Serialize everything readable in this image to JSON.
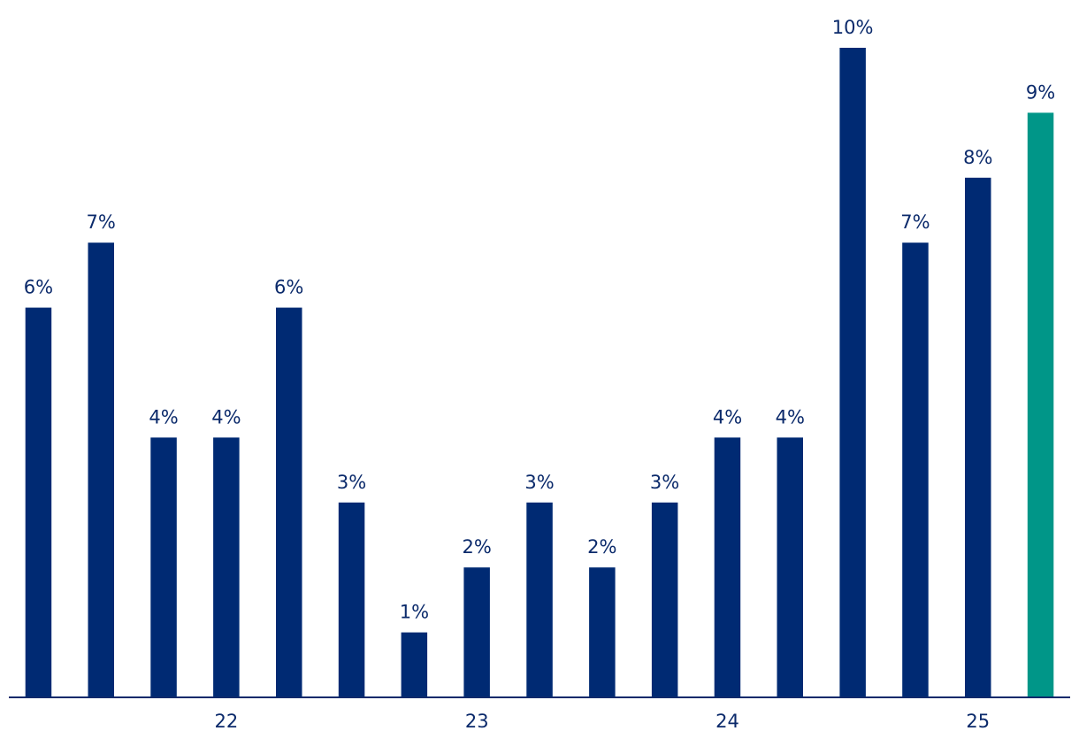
{
  "chart_data": {
    "type": "bar",
    "categories": [
      "",
      "",
      "",
      "22",
      "",
      "",
      "",
      "23",
      "",
      "",
      "",
      "24",
      "",
      "",
      "",
      "25",
      ""
    ],
    "values": [
      6,
      7,
      4,
      4,
      6,
      3,
      1,
      2,
      3,
      2,
      3,
      4,
      4,
      10,
      7,
      8,
      9
    ],
    "labels": [
      "6%",
      "7%",
      "4%",
      "4%",
      "6%",
      "3%",
      "1%",
      "2%",
      "3%",
      "2%",
      "3%",
      "4%",
      "4%",
      "10%",
      "7%",
      "8%",
      "9%"
    ],
    "x_tick_labels": [
      "22",
      "23",
      "24",
      "25"
    ],
    "title": "",
    "xlabel": "",
    "ylabel": "",
    "ylim": [
      0,
      10
    ],
    "grid": false,
    "legend": "none",
    "colors": {
      "bar": "#002a73",
      "highlight": "#009688",
      "axis": "#0b2a6b",
      "text": "#0b2a6b"
    },
    "highlight_index": 16
  }
}
